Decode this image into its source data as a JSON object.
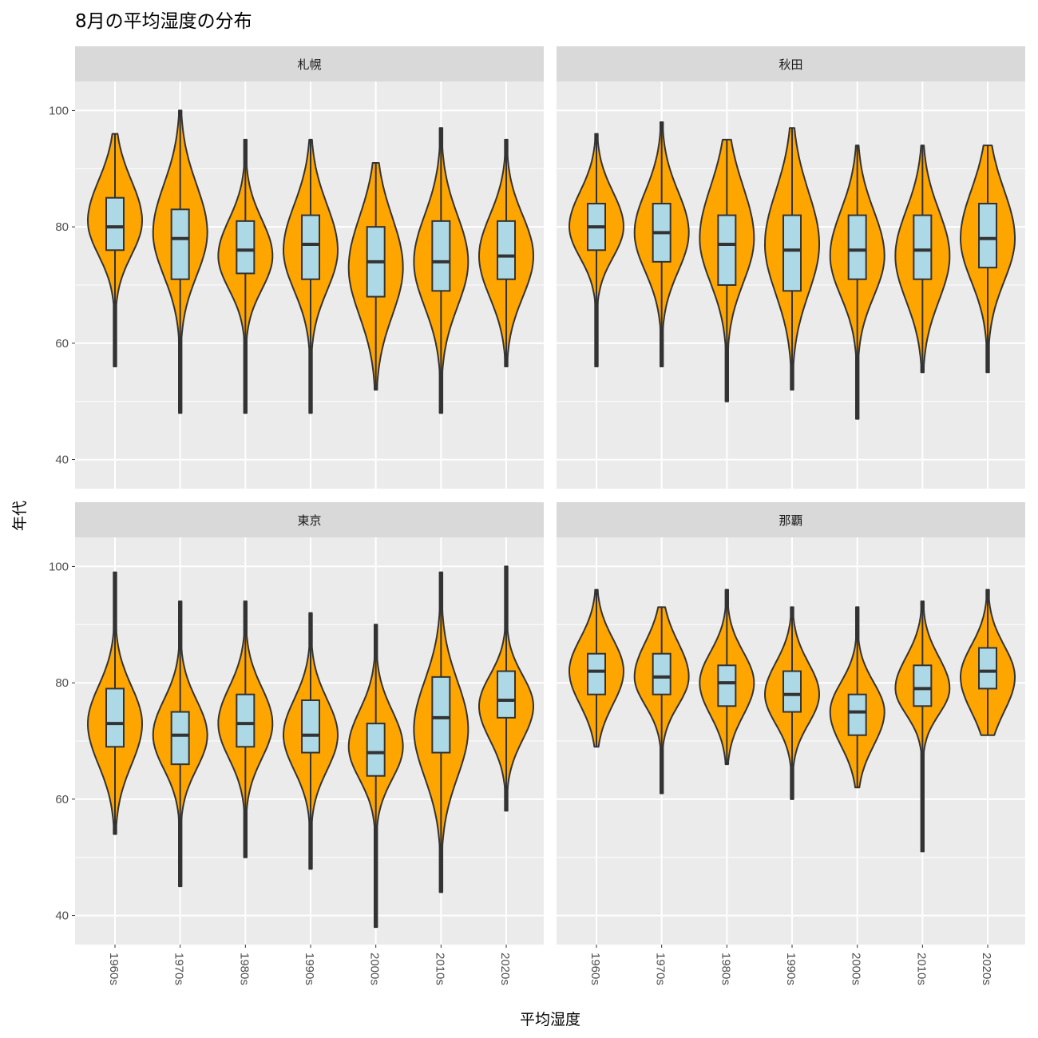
{
  "chart_data": {
    "type": "violin",
    "title": "8月の平均湿度の分布",
    "xlabel": "平均湿度",
    "ylabel": "年代",
    "categories": [
      "1960s",
      "1970s",
      "1980s",
      "1990s",
      "2000s",
      "2010s",
      "2020s"
    ],
    "ylim": [
      35,
      105
    ],
    "y_ticks": [
      40,
      60,
      80,
      100
    ],
    "grid": true,
    "colors": {
      "violin_fill": "#FFA500",
      "box_fill": "#ADD8E6",
      "outline": "#333333",
      "panel_bg": "#EBEBEB",
      "strip_bg": "#D9D9D9",
      "grid": "#FFFFFF"
    },
    "facets": [
      {
        "name": "札幌",
        "series": [
          {
            "category": "1960s",
            "min": 56,
            "q1": 76,
            "median": 80,
            "q3": 85,
            "max": 96,
            "peak": 81
          },
          {
            "category": "1970s",
            "min": 48,
            "q1": 71,
            "median": 78,
            "q3": 83,
            "max": 100,
            "peak": 79
          },
          {
            "category": "1980s",
            "min": 48,
            "q1": 72,
            "median": 76,
            "q3": 81,
            "max": 95,
            "peak": 75
          },
          {
            "category": "1990s",
            "min": 48,
            "q1": 71,
            "median": 77,
            "q3": 82,
            "max": 95,
            "peak": 76
          },
          {
            "category": "2000s",
            "min": 52,
            "q1": 68,
            "median": 74,
            "q3": 80,
            "max": 91,
            "peak": 73
          },
          {
            "category": "2010s",
            "min": 48,
            "q1": 69,
            "median": 74,
            "q3": 81,
            "max": 97,
            "peak": 74
          },
          {
            "category": "2020s",
            "min": 56,
            "q1": 71,
            "median": 75,
            "q3": 81,
            "max": 95,
            "peak": 75
          }
        ]
      },
      {
        "name": "秋田",
        "series": [
          {
            "category": "1960s",
            "min": 56,
            "q1": 76,
            "median": 80,
            "q3": 84,
            "max": 96,
            "peak": 80
          },
          {
            "category": "1970s",
            "min": 56,
            "q1": 74,
            "median": 79,
            "q3": 84,
            "max": 98,
            "peak": 79
          },
          {
            "category": "1980s",
            "min": 50,
            "q1": 70,
            "median": 77,
            "q3": 82,
            "max": 95,
            "peak": 78
          },
          {
            "category": "1990s",
            "min": 52,
            "q1": 69,
            "median": 76,
            "q3": 82,
            "max": 97,
            "peak": 77
          },
          {
            "category": "2000s",
            "min": 47,
            "q1": 71,
            "median": 76,
            "q3": 82,
            "max": 94,
            "peak": 75
          },
          {
            "category": "2010s",
            "min": 55,
            "q1": 71,
            "median": 76,
            "q3": 82,
            "max": 94,
            "peak": 75
          },
          {
            "category": "2020s",
            "min": 55,
            "q1": 73,
            "median": 78,
            "q3": 84,
            "max": 94,
            "peak": 78
          }
        ]
      },
      {
        "name": "東京",
        "series": [
          {
            "category": "1960s",
            "min": 54,
            "q1": 69,
            "median": 73,
            "q3": 79,
            "max": 99,
            "peak": 73
          },
          {
            "category": "1970s",
            "min": 45,
            "q1": 66,
            "median": 71,
            "q3": 75,
            "max": 94,
            "peak": 71
          },
          {
            "category": "1980s",
            "min": 50,
            "q1": 69,
            "median": 73,
            "q3": 78,
            "max": 94,
            "peak": 73
          },
          {
            "category": "1990s",
            "min": 48,
            "q1": 68,
            "median": 71,
            "q3": 77,
            "max": 92,
            "peak": 71
          },
          {
            "category": "2000s",
            "min": 38,
            "q1": 64,
            "median": 68,
            "q3": 73,
            "max": 90,
            "peak": 69
          },
          {
            "category": "2010s",
            "min": 44,
            "q1": 68,
            "median": 74,
            "q3": 81,
            "max": 99,
            "peak": 72
          },
          {
            "category": "2020s",
            "min": 58,
            "q1": 74,
            "median": 77,
            "q3": 82,
            "max": 100,
            "peak": 76
          }
        ]
      },
      {
        "name": "那覇",
        "series": [
          {
            "category": "1960s",
            "min": 69,
            "q1": 78,
            "median": 82,
            "q3": 85,
            "max": 96,
            "peak": 82
          },
          {
            "category": "1970s",
            "min": 61,
            "q1": 78,
            "median": 81,
            "q3": 85,
            "max": 93,
            "peak": 81
          },
          {
            "category": "1980s",
            "min": 66,
            "q1": 76,
            "median": 80,
            "q3": 83,
            "max": 96,
            "peak": 80
          },
          {
            "category": "1990s",
            "min": 60,
            "q1": 75,
            "median": 78,
            "q3": 82,
            "max": 93,
            "peak": 78
          },
          {
            "category": "2000s",
            "min": 62,
            "q1": 71,
            "median": 75,
            "q3": 78,
            "max": 93,
            "peak": 75
          },
          {
            "category": "2010s",
            "min": 51,
            "q1": 76,
            "median": 79,
            "q3": 83,
            "max": 94,
            "peak": 79
          },
          {
            "category": "2020s",
            "min": 71,
            "q1": 79,
            "median": 82,
            "q3": 86,
            "max": 96,
            "peak": 81
          }
        ]
      }
    ]
  }
}
